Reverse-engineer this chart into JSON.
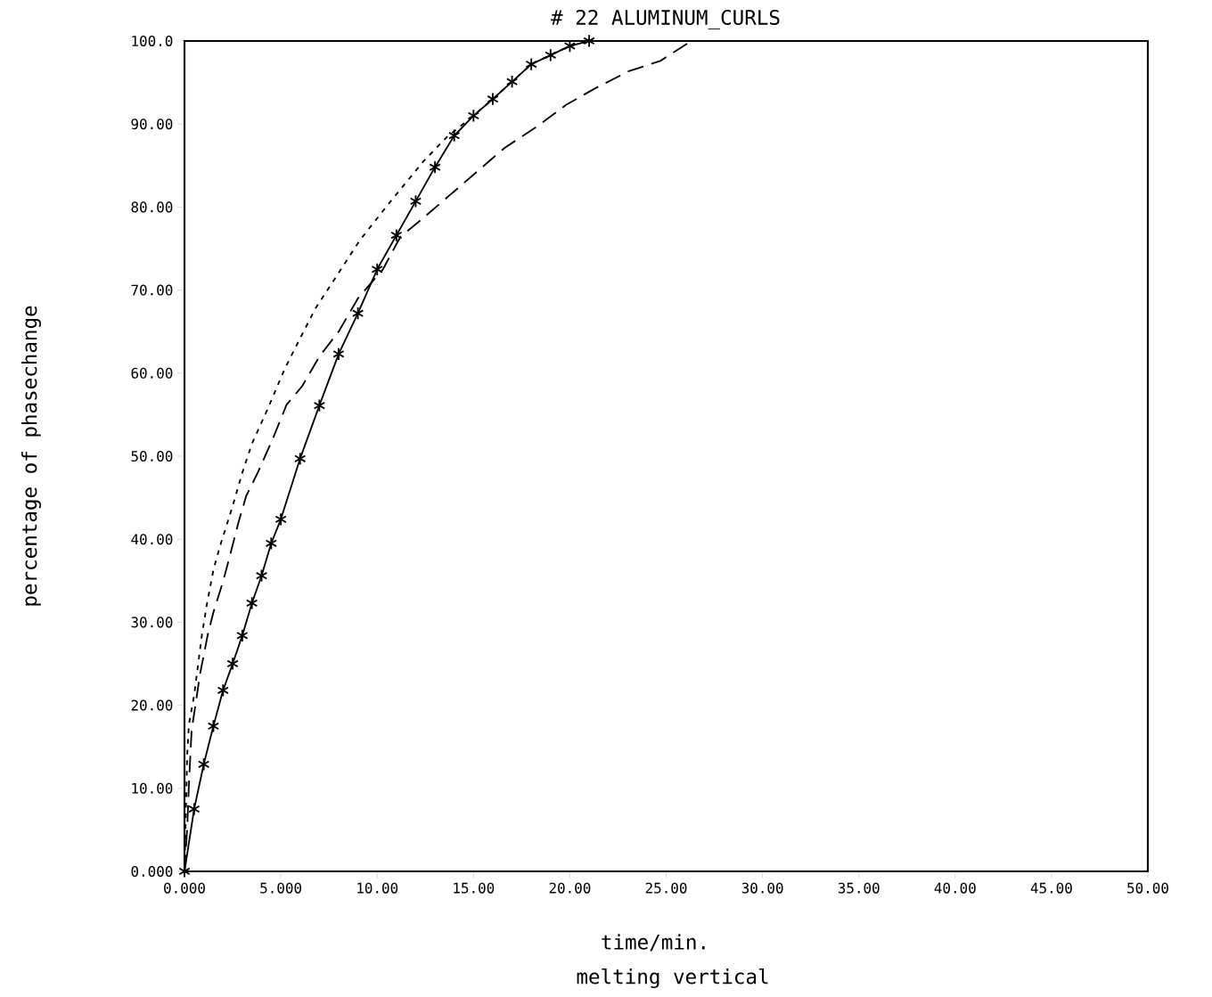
{
  "chart_data": {
    "type": "line",
    "title": "# 22  ALUMINUM_CURLS",
    "xlabel": "time/min.",
    "ylabel": "percentage of phasechange",
    "annotations": [
      "melting vertical"
    ],
    "xlim": [
      0,
      50
    ],
    "ylim": [
      0,
      100
    ],
    "xticks": [
      {
        "value": 0,
        "label": "0.000"
      },
      {
        "value": 5,
        "label": "5.000"
      },
      {
        "value": 10,
        "label": "10.00"
      },
      {
        "value": 15,
        "label": "15.00"
      },
      {
        "value": 20,
        "label": "20.00"
      },
      {
        "value": 25,
        "label": "25.00"
      },
      {
        "value": 30,
        "label": "30.00"
      },
      {
        "value": 35,
        "label": "35.00"
      },
      {
        "value": 40,
        "label": "40.00"
      },
      {
        "value": 45,
        "label": "45.00"
      },
      {
        "value": 50,
        "label": "50.00"
      }
    ],
    "yticks": [
      {
        "value": 0,
        "label": "0.000"
      },
      {
        "value": 10,
        "label": "10.00"
      },
      {
        "value": 20,
        "label": "20.00"
      },
      {
        "value": 30,
        "label": "30.00"
      },
      {
        "value": 40,
        "label": "40.00"
      },
      {
        "value": 50,
        "label": "50.00"
      },
      {
        "value": 60,
        "label": "60.00"
      },
      {
        "value": 70,
        "label": "70.00"
      },
      {
        "value": 80,
        "label": "80.00"
      },
      {
        "value": 90,
        "label": "90.00"
      },
      {
        "value": 100,
        "label": "100.0"
      }
    ],
    "series": [
      {
        "color": "#000000",
        "line_style": "solid",
        "marker": "cross",
        "x": [
          0,
          0.5,
          1,
          1.5,
          2,
          2.5,
          3,
          3.5,
          4,
          4.5,
          5,
          6,
          7,
          8,
          9,
          10,
          11,
          12,
          13,
          14,
          15,
          16,
          17,
          18,
          19,
          20,
          21
        ],
        "values": [
          0,
          7.5,
          12.9,
          17.5,
          21.8,
          25,
          28.4,
          32.3,
          35.6,
          39.5,
          42.4,
          49.7,
          56.1,
          62.3,
          67.2,
          72.5,
          76.6,
          80.7,
          84.8,
          88.6,
          91,
          93,
          95.1,
          97.2,
          98.3,
          99.4,
          100
        ]
      },
      {
        "color": "#000000",
        "line_style": "dotted",
        "marker": "none",
        "x": [
          0,
          0.14,
          0.23,
          0.5,
          0.7,
          0.9,
          1.15,
          1.5,
          1.85,
          2.5,
          3,
          3.5,
          4.3,
          5.2,
          6,
          6.8,
          7.7,
          9.1,
          10.7,
          12.4,
          13.6,
          15,
          16,
          17,
          18,
          19,
          20,
          21
        ],
        "values": [
          0,
          14,
          17.7,
          21.2,
          24.8,
          28.4,
          32,
          36.3,
          39.2,
          44,
          48,
          51.5,
          55.6,
          60.5,
          64.2,
          67.8,
          71,
          76,
          80.7,
          85.5,
          88.4,
          91,
          93,
          95.1,
          97.2,
          98.3,
          99.4,
          100
        ]
      },
      {
        "color": "#000000",
        "line_style": "dashed",
        "marker": "none",
        "x": [
          0,
          0.14,
          0.23,
          0.37,
          0.6,
          0.8,
          1.2,
          1.5,
          2,
          2.4,
          2.8,
          3.2,
          3.8,
          4.6,
          5.3,
          6.1,
          7,
          8,
          9,
          10.3,
          11.2,
          12.3,
          13.8,
          15.3,
          16.6,
          18.3,
          19.8,
          21.4,
          23.1,
          24.7,
          26.3
        ],
        "values": [
          0,
          5.2,
          10.5,
          17,
          20.5,
          23.7,
          28.4,
          31.2,
          34.9,
          38.4,
          42,
          45.2,
          48,
          52.2,
          56.2,
          58.4,
          62,
          65,
          69,
          72.5,
          76.4,
          78.5,
          81.5,
          84.5,
          87.1,
          89.7,
          92.3,
          94.4,
          96.4,
          97.6,
          100
        ]
      }
    ]
  }
}
